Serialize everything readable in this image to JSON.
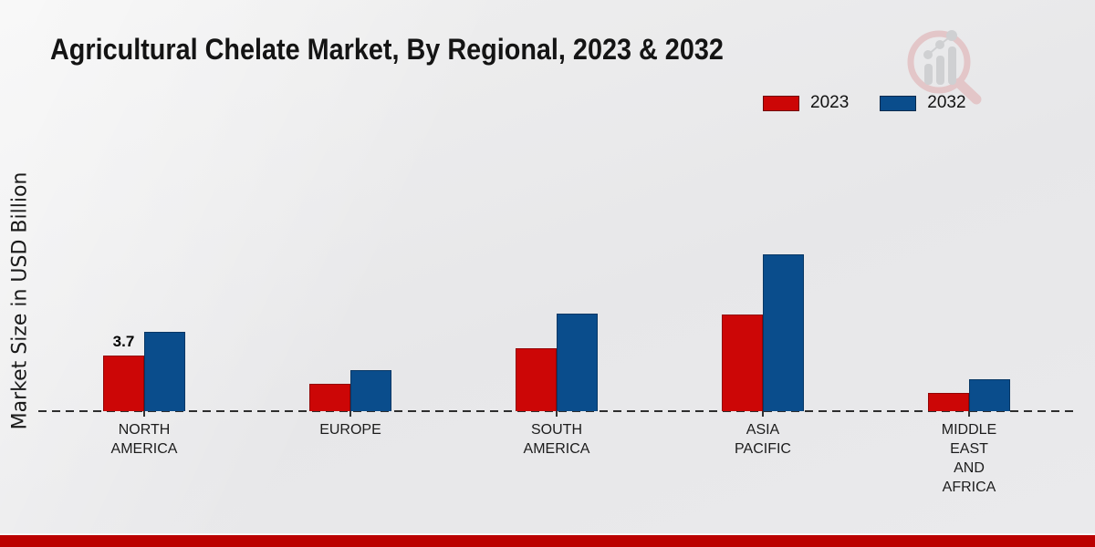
{
  "header": {
    "title": "Agricultural Chelate Market, By Regional, 2023 & 2032"
  },
  "chart_data": {
    "type": "bar",
    "title": "Agricultural Chelate Market, By Regional, 2023 & 2032",
    "ylabel": "Market Size in USD Billion",
    "xlabel": "",
    "ylim": [
      0,
      11
    ],
    "grid": false,
    "baseline_style": "dashed",
    "legend_position": "top-right",
    "categories": [
      "NORTH\nAMERICA",
      "EUROPE",
      "SOUTH\nAMERICA",
      "ASIA\nPACIFIC",
      "MIDDLE\nEAST\nAND\nAFRICA"
    ],
    "series": [
      {
        "name": "2023",
        "color": "#cc0606",
        "values": [
          3.7,
          1.8,
          4.2,
          6.4,
          1.2
        ]
      },
      {
        "name": "2032",
        "color": "#0a4d8c",
        "values": [
          5.3,
          2.7,
          6.5,
          10.4,
          2.1
        ]
      }
    ],
    "bar_labels": [
      {
        "series": "2023",
        "category_index": 0,
        "text": "3.7"
      }
    ]
  },
  "logo": {
    "icon": "magnifier-bar-chart-logo"
  },
  "footer": {
    "stripe_color": "#bb0100"
  }
}
